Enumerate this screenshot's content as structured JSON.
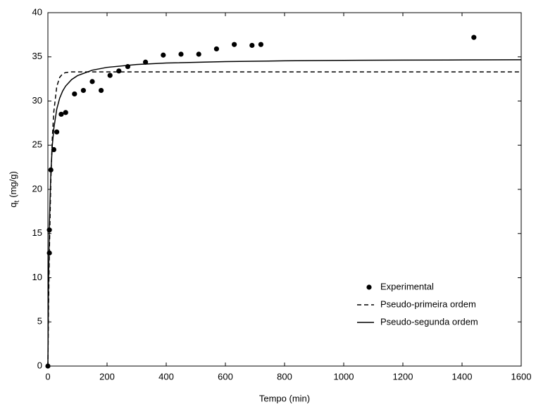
{
  "chart_data": {
    "type": "scatter",
    "xlabel": "Tempo (min)",
    "ylabel": {
      "base": "q",
      "sub": "t",
      "rest": "(mg/g)"
    },
    "xlim": [
      0,
      1600
    ],
    "xticks": [
      0,
      200,
      400,
      600,
      800,
      1000,
      1200,
      1400,
      1600
    ],
    "ylim": [
      0,
      40
    ],
    "yticks": [
      0,
      5,
      10,
      15,
      20,
      25,
      30,
      35,
      40
    ],
    "legend": "lower right",
    "series": [
      {
        "name": "Experimental",
        "style": "markers",
        "color": "#000000",
        "x": [
          0,
          5,
          5,
          10,
          20,
          30,
          45,
          60,
          90,
          120,
          150,
          180,
          210,
          240,
          270,
          330,
          390,
          450,
          510,
          570,
          630,
          690,
          720,
          1440
        ],
        "values": [
          0,
          12.8,
          15.4,
          22.2,
          24.5,
          26.5,
          28.5,
          28.7,
          30.8,
          31.2,
          32.2,
          31.2,
          32.9,
          33.4,
          33.9,
          34.4,
          35.2,
          35.3,
          35.3,
          35.9,
          36.4,
          36.3,
          36.4,
          37.2
        ]
      },
      {
        "name": "Pseudo-primeira ordem",
        "style": "dashed",
        "color": "#000000",
        "x": [
          0,
          2,
          5,
          10,
          15,
          20,
          30,
          40,
          50,
          60,
          80,
          100,
          150,
          200,
          300,
          400,
          600,
          800,
          1000,
          1200,
          1400,
          1600
        ],
        "values": [
          0,
          6.04,
          13.1,
          21.05,
          25.87,
          28.79,
          31.64,
          32.69,
          33.08,
          33.22,
          33.3,
          33.3,
          33.3,
          33.3,
          33.3,
          33.3,
          33.3,
          33.3,
          33.3,
          33.3,
          33.3,
          33.3
        ]
      },
      {
        "name": "Pseudo-segunda ordem",
        "style": "solid",
        "color": "#000000",
        "x": [
          0,
          2,
          5,
          10,
          15,
          20,
          30,
          40,
          50,
          60,
          80,
          100,
          150,
          200,
          300,
          400,
          600,
          800,
          1000,
          1200,
          1400,
          1600
        ],
        "values": [
          0,
          8.83,
          15.99,
          21.91,
          25.0,
          26.89,
          29.09,
          30.34,
          31.14,
          31.69,
          32.42,
          32.87,
          33.49,
          33.81,
          34.13,
          34.3,
          34.46,
          34.55,
          34.6,
          34.63,
          34.65,
          34.67
        ]
      }
    ]
  }
}
